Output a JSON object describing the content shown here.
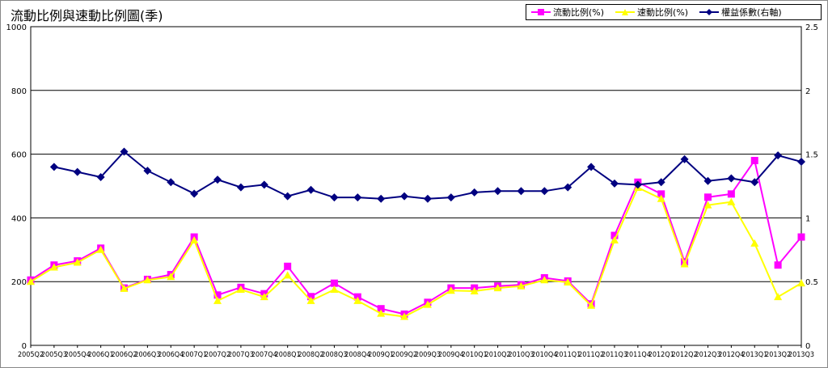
{
  "title": "流動比例與速動比例圖(季)",
  "colors": {
    "current": "#ff00ff",
    "quick": "#ffff00",
    "equity": "#000080",
    "grid": "#000000"
  },
  "legend": {
    "current": "流動比例(%)",
    "quick": "速動比例(%)",
    "equity": "權益係數(右軸)"
  },
  "chart_data": {
    "type": "line",
    "title": "流動比例與速動比例圖(季)",
    "categories": [
      "2005Q2",
      "2005Q3",
      "2005Q4",
      "2006Q1",
      "2006Q2",
      "2006Q3",
      "2006Q4",
      "2007Q1",
      "2007Q2",
      "2007Q3",
      "2007Q4",
      "2008Q1",
      "2008Q2",
      "2008Q3",
      "2008Q4",
      "2009Q1",
      "2009Q2",
      "2009Q3",
      "2009Q4",
      "2010Q1",
      "2010Q2",
      "2010Q3",
      "2010Q4",
      "2011Q1",
      "2011Q2",
      "2011Q3",
      "2011Q4",
      "2012Q1",
      "2012Q2",
      "2012Q3",
      "2012Q4",
      "2013Q1",
      "2013Q2",
      "2013Q3"
    ],
    "left_axis": {
      "ylim": [
        0,
        1000
      ],
      "ticks": [
        "0",
        "200",
        "400",
        "600",
        "800",
        "1000"
      ]
    },
    "right_axis": {
      "ylim": [
        0,
        2.5
      ],
      "ticks": [
        "0",
        "0.5",
        "1",
        "1.5",
        "2",
        "2.5"
      ]
    },
    "series": [
      {
        "name": "流動比例(%)",
        "axis": "left",
        "marker": "square",
        "values": [
          205,
          252,
          265,
          305,
          180,
          207,
          222,
          340,
          158,
          182,
          162,
          248,
          153,
          195,
          152,
          115,
          98,
          135,
          180,
          180,
          186,
          190,
          212,
          202,
          130,
          345,
          512,
          475,
          262,
          465,
          475,
          580,
          252,
          340
        ]
      },
      {
        "name": "速動比例(%)",
        "axis": "left",
        "marker": "triangle",
        "values": [
          200,
          245,
          260,
          300,
          178,
          205,
          215,
          330,
          140,
          175,
          152,
          220,
          140,
          175,
          140,
          100,
          90,
          128,
          172,
          170,
          180,
          186,
          205,
          198,
          125,
          330,
          495,
          460,
          255,
          440,
          450,
          320,
          152,
          195
        ]
      },
      {
        "name": "權益係數(右軸)",
        "axis": "right",
        "marker": "diamond",
        "values": [
          null,
          1.4,
          1.36,
          1.32,
          1.52,
          1.37,
          1.28,
          1.19,
          1.3,
          1.24,
          1.26,
          1.17,
          1.22,
          1.16,
          1.16,
          1.15,
          1.17,
          1.15,
          1.16,
          1.2,
          1.21,
          1.21,
          1.21,
          1.24,
          1.4,
          1.27,
          1.26,
          1.28,
          1.46,
          1.29,
          1.31,
          1.28,
          1.49,
          1.44
        ]
      }
    ],
    "grid": true,
    "legend_position": "top-right"
  }
}
